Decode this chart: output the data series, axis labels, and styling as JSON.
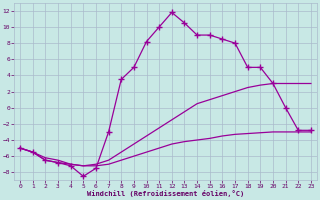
{
  "xlabel": "Windchill (Refroidissement éolien,°C)",
  "bg_color": "#c8e8e5",
  "line_color": "#990099",
  "grid_color": "#aabbcc",
  "text_color": "#660066",
  "xlim_min": -0.5,
  "xlim_max": 23.5,
  "ylim_min": -9.0,
  "ylim_max": 13.0,
  "xticks": [
    0,
    1,
    2,
    3,
    4,
    5,
    6,
    7,
    8,
    9,
    10,
    11,
    12,
    13,
    14,
    15,
    16,
    17,
    18,
    19,
    20,
    21,
    22,
    23
  ],
  "yticks": [
    -8,
    -6,
    -4,
    -2,
    0,
    2,
    4,
    6,
    8,
    10,
    12
  ],
  "line1_x": [
    0,
    1,
    2,
    3,
    4,
    5,
    6,
    7,
    8,
    9,
    10,
    11,
    12,
    13,
    14,
    15,
    16,
    17,
    18,
    19,
    20,
    21,
    22,
    23
  ],
  "line1_y": [
    -5.0,
    -5.5,
    -6.5,
    -6.8,
    -7.0,
    -7.2,
    -7.2,
    -7.0,
    -6.5,
    -6.0,
    -5.5,
    -5.0,
    -4.5,
    -4.2,
    -4.0,
    -3.8,
    -3.5,
    -3.3,
    -3.2,
    -3.1,
    -3.0,
    -3.0,
    -3.0,
    -3.0
  ],
  "line2_x": [
    0,
    1,
    2,
    3,
    4,
    5,
    6,
    7,
    8,
    9,
    10,
    11,
    12,
    13,
    14,
    15,
    16,
    17,
    18,
    19,
    20,
    21,
    22,
    23
  ],
  "line2_y": [
    -5.0,
    -5.5,
    -6.2,
    -6.5,
    -7.0,
    -7.2,
    -7.0,
    -6.5,
    -5.5,
    -4.5,
    -3.5,
    -2.5,
    -1.5,
    -0.5,
    0.5,
    1.0,
    1.5,
    2.0,
    2.5,
    2.8,
    3.0,
    3.0,
    3.0,
    3.0
  ],
  "line3_x": [
    0,
    1,
    2,
    3,
    4,
    5,
    6,
    7,
    8,
    9,
    10,
    11,
    12,
    13,
    14,
    15,
    16,
    17,
    18,
    19,
    20,
    21,
    22,
    23
  ],
  "line3_y": [
    -5.0,
    -5.5,
    -6.5,
    -6.8,
    -7.2,
    -8.5,
    -7.5,
    -3.0,
    3.5,
    5.0,
    8.2,
    10.0,
    11.8,
    10.5,
    9.0,
    9.0,
    8.5,
    8.0,
    5.0,
    5.0,
    3.0,
    0.0,
    -2.8,
    -2.8
  ]
}
